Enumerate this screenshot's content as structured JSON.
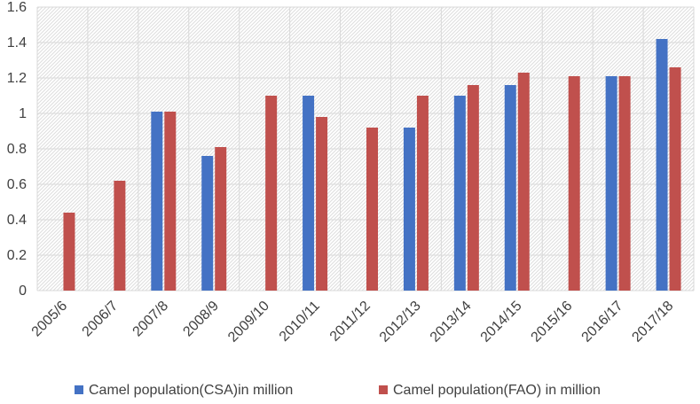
{
  "chart_data": {
    "type": "bar",
    "categories": [
      "2005/6",
      "2006/7",
      "2007/8",
      "2008/9",
      "2009/10",
      "2010/11",
      "2011/12",
      "2012/13",
      "2013/14",
      "2014/15",
      "2015/16",
      "2016/17",
      "2017/18"
    ],
    "series": [
      {
        "name": "Camel population(CSA)in million",
        "color": "#4472c4",
        "values": [
          null,
          null,
          1.01,
          0.76,
          null,
          1.1,
          null,
          0.92,
          1.1,
          1.16,
          null,
          1.21,
          1.42
        ]
      },
      {
        "name": "Camel population(FAO) in million",
        "color": "#c0504d",
        "values": [
          0.44,
          0.62,
          1.01,
          0.81,
          1.1,
          0.98,
          0.92,
          1.1,
          1.16,
          1.23,
          1.21,
          1.21,
          1.26
        ]
      }
    ],
    "ylim": [
      0,
      1.6
    ],
    "yticks": [
      "0",
      "0.2",
      "0.4",
      "0.6",
      "0.8",
      "1",
      "1.2",
      "1.4",
      "1.6"
    ],
    "grid": true,
    "plot_background": "hatched",
    "legend_position": "bottom"
  }
}
